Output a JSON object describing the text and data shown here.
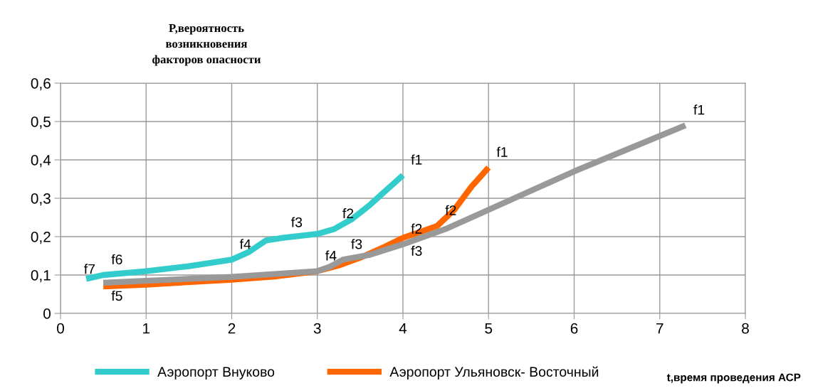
{
  "chart_data": {
    "type": "line",
    "title": "P,вероятность\nвозникновения\nфакторов опасности",
    "xlabel": "t,время проведения АСР",
    "series": [
      {
        "name": "Аэропорт Внуково",
        "color": "#33cccc",
        "x": [
          0.3,
          0.5,
          1,
          1.5,
          2,
          2.2,
          2.4,
          2.6,
          3,
          3.2,
          3.4,
          3.6,
          3.8,
          4
        ],
        "values": [
          0.09,
          0.1,
          0.11,
          0.123,
          0.14,
          0.16,
          0.19,
          0.197,
          0.207,
          0.22,
          0.245,
          0.28,
          0.32,
          0.36
        ]
      },
      {
        "name": "Аэропорт Ульяновск- Восточный",
        "color": "#ff6600",
        "x": [
          0.5,
          1,
          2,
          2.5,
          3,
          3.25,
          3.5,
          3.8,
          4,
          4.2,
          4.4,
          4.6,
          4.8,
          5
        ],
        "values": [
          0.07,
          0.075,
          0.088,
          0.096,
          0.11,
          0.125,
          0.145,
          0.175,
          0.197,
          0.212,
          0.228,
          0.27,
          0.33,
          0.38
        ]
      },
      {
        "color": "#999999",
        "x": [
          0.5,
          1,
          2,
          3,
          3.15,
          3.3,
          3.6,
          4,
          4.5,
          5,
          6,
          7.3
        ],
        "values": [
          0.08,
          0.085,
          0.095,
          0.11,
          0.122,
          0.14,
          0.152,
          0.18,
          0.22,
          0.27,
          0.37,
          0.49
        ]
      }
    ],
    "annotations": [
      {
        "text": "f6",
        "x": 0.5,
        "y": 0.1
      },
      {
        "text": "f5",
        "x": 0.5,
        "y": 0.08
      },
      {
        "text": "f7",
        "x": 0.5,
        "y": 0.07
      },
      {
        "text": "f4",
        "x": 2,
        "y": 0.14
      },
      {
        "text": "f3",
        "x": 2.6,
        "y": 0.197
      },
      {
        "text": "f2",
        "x": 3.2,
        "y": 0.22
      },
      {
        "text": "f1",
        "x": 4,
        "y": 0.36
      },
      {
        "text": "f4",
        "x": 3,
        "y": 0.11
      },
      {
        "text": "f3",
        "x": 3.3,
        "y": 0.14
      },
      {
        "text": "f2",
        "x": 4,
        "y": 0.18
      },
      {
        "text": "f1",
        "x": 7.3,
        "y": 0.49
      },
      {
        "text": "f3",
        "x": 4,
        "y": 0.197
      },
      {
        "text": "f2",
        "x": 4.4,
        "y": 0.228
      },
      {
        "text": "f1",
        "x": 5,
        "y": 0.38
      }
    ],
    "xlim": [
      0,
      8
    ],
    "xticks": [
      0,
      1,
      2,
      3,
      4,
      5,
      6,
      7,
      8
    ],
    "ylim": [
      0,
      0.6
    ],
    "yticks": [
      {
        "value": 0,
        "label": "0"
      },
      {
        "value": 0.1,
        "label": "0,1"
      },
      {
        "value": 0.2,
        "label": "0,2"
      },
      {
        "value": 0.3,
        "label": "0,3"
      },
      {
        "value": 0.4,
        "label": "0,4"
      },
      {
        "value": 0.5,
        "label": "0,5"
      },
      {
        "value": 0.6,
        "label": "0,6"
      }
    ],
    "grid": true,
    "legend": "bottom",
    "marker": "none",
    "line_style": "solid"
  }
}
